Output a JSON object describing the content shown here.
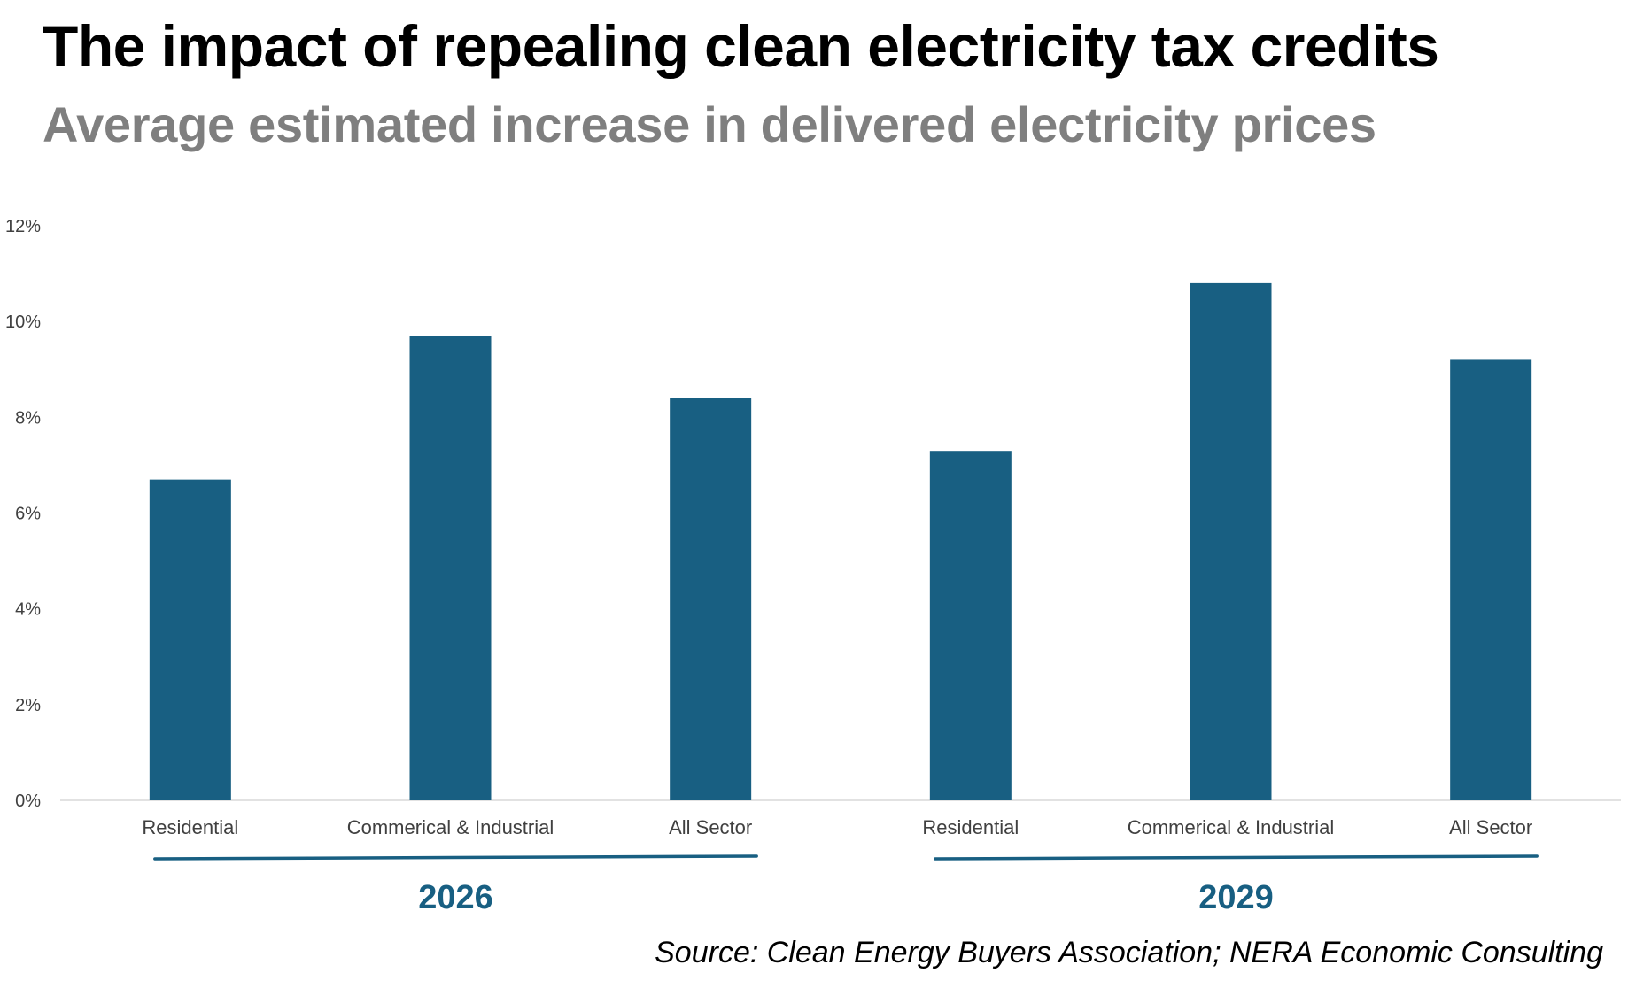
{
  "title": "The impact of repealing clean electricity tax credits",
  "subtitle": "Average estimated increase in delivered electricity prices",
  "source": "Source: Clean Energy Buyers Association; NERA Economic Consulting",
  "colors": {
    "bar": "#185f82",
    "axis": "#d9d9d9",
    "tick_text": "#404040",
    "group_label": "#185f82"
  },
  "chart_data": {
    "type": "bar",
    "title": "The impact of repealing clean electricity tax credits",
    "subtitle": "Average estimated increase in delivered electricity prices",
    "xlabel": "",
    "ylabel": "",
    "ylim": [
      0,
      12
    ],
    "yticks": [
      "0%",
      "2%",
      "4%",
      "6%",
      "8%",
      "10%",
      "12%"
    ],
    "grid": false,
    "legend": "none",
    "groups": [
      {
        "label": "2026",
        "categories": [
          "Residential",
          "Commerical & Industrial",
          "All Sector"
        ],
        "values": [
          6.7,
          9.7,
          8.4
        ]
      },
      {
        "label": "2029",
        "categories": [
          "Residential",
          "Commerical & Industrial",
          "All Sector"
        ],
        "values": [
          7.3,
          10.8,
          9.2
        ]
      }
    ]
  }
}
